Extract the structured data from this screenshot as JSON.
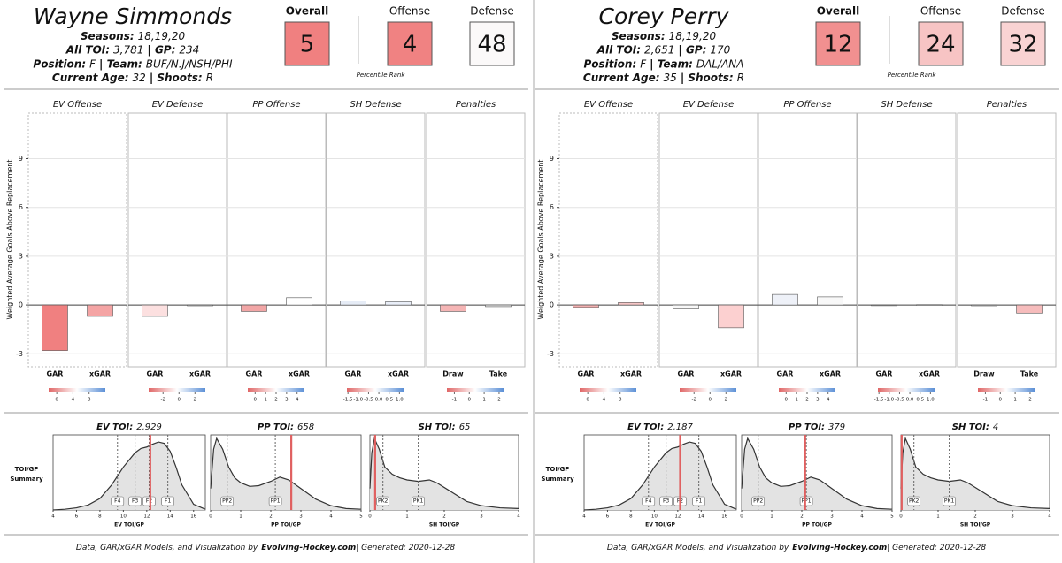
{
  "players": [
    {
      "name": "Wayne Simmonds",
      "lines": [
        [
          {
            "label": "Seasons:",
            "value": "18,19,20"
          }
        ],
        [
          {
            "label": "All TOI:",
            "value": "3,781"
          },
          {
            "label": "| GP:",
            "value": "234"
          }
        ],
        [
          {
            "label": "Position:",
            "value": "F"
          },
          {
            "label": "| Team:",
            "value": "BUF/N.J/NSH/PHI"
          }
        ],
        [
          {
            "label": "Current Age:",
            "value": "32"
          },
          {
            "label": "| Shoots:",
            "value": "R"
          }
        ]
      ],
      "ratings": [
        {
          "label": "Overall",
          "value": 5,
          "color": "#f08080"
        },
        {
          "label": "Offense",
          "value": 4,
          "color": "#f08282"
        },
        {
          "label": "Defense",
          "value": 48,
          "color": "#fbf9f9"
        }
      ],
      "footer": {
        "prefix": "Data, GAR/xGAR Models, and Visualization by",
        "site": "Evolving-Hockey.com",
        "suffix": "| Generated: 2020-12-28"
      }
    },
    {
      "name": "Corey Perry",
      "lines": [
        [
          {
            "label": "Seasons:",
            "value": "18,19,20"
          }
        ],
        [
          {
            "label": "All TOI:",
            "value": "2,651"
          },
          {
            "label": "| GP:",
            "value": "170"
          }
        ],
        [
          {
            "label": "Position:",
            "value": "F"
          },
          {
            "label": "| Team:",
            "value": "DAL/ANA"
          }
        ],
        [
          {
            "label": "Current Age:",
            "value": "35"
          },
          {
            "label": "| Shoots:",
            "value": "R"
          }
        ]
      ],
      "ratings": [
        {
          "label": "Overall",
          "value": 12,
          "color": "#f19090"
        },
        {
          "label": "Offense",
          "value": 24,
          "color": "#f7c4c4"
        },
        {
          "label": "Defense",
          "value": 32,
          "color": "#f9d3d3"
        }
      ],
      "footer": {
        "prefix": "Data, GAR/xGAR Models, and Visualization by",
        "site": "Evolving-Hockey.com",
        "suffix": "| Generated: 2020-12-28"
      }
    }
  ],
  "percentile_label": "Percentile Rank",
  "y_axis_label": "Weighted Average Goals Above Replacement",
  "toi_summary_label": [
    "TOI/GP",
    "Summary"
  ],
  "chart_data": [
    {
      "type": "bar",
      "title": "EV Offense",
      "categories": [
        "GAR",
        "xGAR"
      ],
      "values": [
        -2.8,
        -0.7
      ],
      "colors": [
        "#f08080",
        "#f4a4a4"
      ],
      "ylim": [
        -3.8,
        11.8
      ],
      "yticks": [
        -3,
        0,
        3,
        6,
        9
      ],
      "colorbar": {
        "lim": [
          -2,
          12
        ],
        "ticks": [
          0,
          4,
          8
        ]
      }
    },
    {
      "type": "bar",
      "title": "EV Defense",
      "categories": [
        "GAR",
        "xGAR"
      ],
      "values": [
        -0.7,
        -0.05
      ],
      "colors": [
        "#fce0e0",
        "#f5f5f5"
      ],
      "ylim": [
        -3.8,
        11.8
      ],
      "yticks": [
        -3,
        0,
        3,
        6,
        9
      ],
      "colorbar": {
        "lim": [
          -3.8,
          3.3
        ],
        "ticks": [
          -2,
          0,
          2
        ]
      }
    },
    {
      "type": "bar",
      "title": "PP Offense",
      "categories": [
        "GAR",
        "xGAR"
      ],
      "values": [
        -0.4,
        0.45
      ],
      "colors": [
        "#f2a6a6",
        "#ffffff"
      ],
      "ylim": [
        -3.8,
        11.8
      ],
      "yticks": [
        -3,
        0,
        3,
        6,
        9
      ],
      "colorbar": {
        "lim": [
          -0.7,
          4.7
        ],
        "ticks": [
          0,
          1,
          2,
          3,
          4
        ]
      }
    },
    {
      "type": "bar",
      "title": "SH Defense",
      "categories": [
        "GAR",
        "xGAR"
      ],
      "values": [
        0.25,
        0.2
      ],
      "colors": [
        "#e6ecf6",
        "#e9eef8"
      ],
      "ylim": [
        -3.8,
        11.8
      ],
      "yticks": [
        -3,
        0,
        3,
        6,
        9
      ],
      "colorbar": {
        "lim": [
          -1.55,
          1.2
        ],
        "ticks": [
          -1.5,
          {
            "value": -1,
            "label": "-1.0"
          },
          -0.5,
          {
            "value": 0,
            "label": "0.0"
          },
          0.5,
          {
            "value": 1,
            "label": "1.0"
          }
        ]
      }
    },
    {
      "type": "bar",
      "title": "Penalties",
      "categories": [
        "Draw",
        "Take"
      ],
      "values": [
        -0.4,
        -0.1
      ],
      "colors": [
        "#f5b5b5",
        "#f3f3f3"
      ],
      "ylim": [
        -3.8,
        11.8
      ],
      "yticks": [
        -3,
        0,
        3,
        6,
        9
      ],
      "colorbar": {
        "lim": [
          -1.5,
          2.3
        ],
        "ticks": [
          -1,
          0,
          1,
          2
        ]
      }
    },
    {
      "type": "area",
      "title": "EV TOI:",
      "title_value": "2,929",
      "xlabel": "EV TOI/GP",
      "xlim": [
        4,
        17
      ],
      "xticks": [
        4,
        6,
        8,
        10,
        12,
        14,
        16
      ],
      "ylim": [
        0,
        1.05
      ],
      "x": [
        4,
        5,
        6,
        7,
        8,
        9,
        10,
        11,
        11.5,
        12,
        12.5,
        13,
        13.5,
        14,
        14.5,
        15,
        16,
        17
      ],
      "values": [
        0,
        0.01,
        0.03,
        0.07,
        0.16,
        0.35,
        0.6,
        0.8,
        0.86,
        0.88,
        0.92,
        0.95,
        0.93,
        0.82,
        0.6,
        0.35,
        0.08,
        0.01
      ],
      "markers": [
        {
          "label": "F4",
          "x": 9.5
        },
        {
          "label": "F3",
          "x": 11
        },
        {
          "label": "F2",
          "x": 12.2
        },
        {
          "label": "F1",
          "x": 13.8
        }
      ],
      "highlight_x": 12.3
    },
    {
      "type": "area",
      "title": "PP TOI:",
      "title_value": "658",
      "xlabel": "PP TOI/GP",
      "xlim": [
        0,
        5
      ],
      "xticks": [
        0,
        1,
        2,
        3,
        4,
        5
      ],
      "ylim": [
        0,
        1.05
      ],
      "x": [
        0,
        0.1,
        0.2,
        0.4,
        0.6,
        0.8,
        1,
        1.3,
        1.6,
        2,
        2.3,
        2.6,
        3,
        3.5,
        4,
        4.5,
        5
      ],
      "values": [
        0.3,
        0.85,
        1,
        0.85,
        0.6,
        0.45,
        0.38,
        0.33,
        0.34,
        0.4,
        0.46,
        0.42,
        0.3,
        0.15,
        0.06,
        0.02,
        0.01
      ],
      "markers": [
        {
          "label": "PP2",
          "x": 0.55
        },
        {
          "label": "PP1",
          "x": 2.15
        }
      ],
      "highlight_x": 2.68
    },
    {
      "type": "area",
      "title": "SH TOI:",
      "title_value": "65",
      "xlabel": "SH TOI/GP",
      "xlim": [
        0,
        4
      ],
      "xticks": [
        0,
        1,
        2,
        3,
        4
      ],
      "ylim": [
        0,
        1.05
      ],
      "x": [
        0,
        0.05,
        0.12,
        0.25,
        0.4,
        0.6,
        0.8,
        1,
        1.3,
        1.6,
        1.8,
        2.2,
        2.6,
        3,
        3.5,
        4
      ],
      "values": [
        0.3,
        0.8,
        1,
        0.85,
        0.6,
        0.5,
        0.45,
        0.42,
        0.4,
        0.42,
        0.38,
        0.25,
        0.12,
        0.06,
        0.03,
        0.02
      ],
      "markers": [
        {
          "label": "PK2",
          "x": 0.35
        },
        {
          "label": "PK1",
          "x": 1.3
        }
      ],
      "highlight_x": 0.14
    },
    {
      "type": "bar",
      "title": "EV Offense",
      "categories": [
        "GAR",
        "xGAR"
      ],
      "values": [
        -0.15,
        0.15
      ],
      "colors": [
        "#f4b0b0",
        "#f6c6c6"
      ],
      "ylim": [
        -3.8,
        11.8
      ],
      "yticks": [
        -3,
        0,
        3,
        6,
        9
      ],
      "colorbar": {
        "lim": [
          -2,
          12
        ],
        "ticks": [
          0,
          4,
          8
        ]
      }
    },
    {
      "type": "bar",
      "title": "EV Defense",
      "categories": [
        "GAR",
        "xGAR"
      ],
      "values": [
        -0.25,
        -1.4
      ],
      "colors": [
        "#f8f8f8",
        "#fcd0d0"
      ],
      "ylim": [
        -3.8,
        11.8
      ],
      "yticks": [
        -3,
        0,
        3,
        6,
        9
      ],
      "colorbar": {
        "lim": [
          -3.8,
          3.3
        ],
        "ticks": [
          -2,
          0,
          2
        ]
      }
    },
    {
      "type": "bar",
      "title": "PP Offense",
      "categories": [
        "GAR",
        "xGAR"
      ],
      "values": [
        0.65,
        0.5
      ],
      "colors": [
        "#eef1f8",
        "#f8f8f8"
      ],
      "ylim": [
        -3.8,
        11.8
      ],
      "yticks": [
        -3,
        0,
        3,
        6,
        9
      ],
      "colorbar": {
        "lim": [
          -0.7,
          4.7
        ],
        "ticks": [
          0,
          1,
          2,
          3,
          4
        ]
      }
    },
    {
      "type": "bar",
      "title": "SH Defense",
      "categories": [
        "GAR",
        "xGAR"
      ],
      "values": [
        -0.02,
        0.02
      ],
      "colors": [
        "#f4f4f4",
        "#f4f4f4"
      ],
      "ylim": [
        -3.8,
        11.8
      ],
      "yticks": [
        -3,
        0,
        3,
        6,
        9
      ],
      "colorbar": {
        "lim": [
          -1.55,
          1.2
        ],
        "ticks": [
          -1.5,
          {
            "value": -1,
            "label": "-1.0"
          },
          -0.5,
          {
            "value": 0,
            "label": "0.0"
          },
          0.5,
          {
            "value": 1,
            "label": "1.0"
          }
        ]
      }
    },
    {
      "type": "bar",
      "title": "Penalties",
      "categories": [
        "Draw",
        "Take"
      ],
      "values": [
        -0.05,
        -0.5
      ],
      "colors": [
        "#f3f3f3",
        "#f6bcbc"
      ],
      "ylim": [
        -3.8,
        11.8
      ],
      "yticks": [
        -3,
        0,
        3,
        6,
        9
      ],
      "colorbar": {
        "lim": [
          -1.5,
          2.3
        ],
        "ticks": [
          -1,
          0,
          1,
          2
        ]
      }
    },
    {
      "type": "area",
      "title": "EV TOI:",
      "title_value": "2,187",
      "xlabel": "EV TOI/GP",
      "xlim": [
        4,
        17
      ],
      "xticks": [
        4,
        6,
        8,
        10,
        12,
        14,
        16
      ],
      "ylim": [
        0,
        1.05
      ],
      "x": [
        4,
        5,
        6,
        7,
        8,
        9,
        10,
        11,
        11.5,
        12,
        12.5,
        13,
        13.5,
        14,
        14.5,
        15,
        16,
        17
      ],
      "values": [
        0,
        0.01,
        0.03,
        0.07,
        0.16,
        0.35,
        0.6,
        0.8,
        0.86,
        0.88,
        0.92,
        0.95,
        0.93,
        0.82,
        0.6,
        0.35,
        0.08,
        0.01
      ],
      "markers": [
        {
          "label": "F4",
          "x": 9.5
        },
        {
          "label": "F3",
          "x": 11
        },
        {
          "label": "F2",
          "x": 12.2
        },
        {
          "label": "F1",
          "x": 13.8
        }
      ],
      "highlight_x": 12.2
    },
    {
      "type": "area",
      "title": "PP TOI:",
      "title_value": "379",
      "xlabel": "PP TOI/GP",
      "xlim": [
        0,
        5
      ],
      "xticks": [
        0,
        1,
        2,
        3,
        4,
        5
      ],
      "ylim": [
        0,
        1.05
      ],
      "x": [
        0,
        0.1,
        0.2,
        0.4,
        0.6,
        0.8,
        1,
        1.3,
        1.6,
        2,
        2.3,
        2.6,
        3,
        3.5,
        4,
        4.5,
        5
      ],
      "values": [
        0.3,
        0.85,
        1,
        0.85,
        0.6,
        0.45,
        0.38,
        0.33,
        0.34,
        0.4,
        0.46,
        0.42,
        0.3,
        0.15,
        0.06,
        0.02,
        0.01
      ],
      "markers": [
        {
          "label": "PP2",
          "x": 0.55
        },
        {
          "label": "PP1",
          "x": 2.15
        }
      ],
      "highlight_x": 2.11
    },
    {
      "type": "area",
      "title": "SH TOI:",
      "title_value": "4",
      "xlabel": "SH TOI/GP",
      "xlim": [
        0,
        4
      ],
      "xticks": [
        0,
        1,
        2,
        3,
        4
      ],
      "ylim": [
        0,
        1.05
      ],
      "x": [
        0,
        0.05,
        0.12,
        0.25,
        0.4,
        0.6,
        0.8,
        1,
        1.3,
        1.6,
        1.8,
        2.2,
        2.6,
        3,
        3.5,
        4
      ],
      "values": [
        0.3,
        0.8,
        1,
        0.85,
        0.6,
        0.5,
        0.45,
        0.42,
        0.4,
        0.42,
        0.38,
        0.25,
        0.12,
        0.06,
        0.03,
        0.02
      ],
      "markers": [
        {
          "label": "PK2",
          "x": 0.35
        },
        {
          "label": "PK1",
          "x": 1.3
        }
      ],
      "highlight_x": 0.02
    }
  ]
}
